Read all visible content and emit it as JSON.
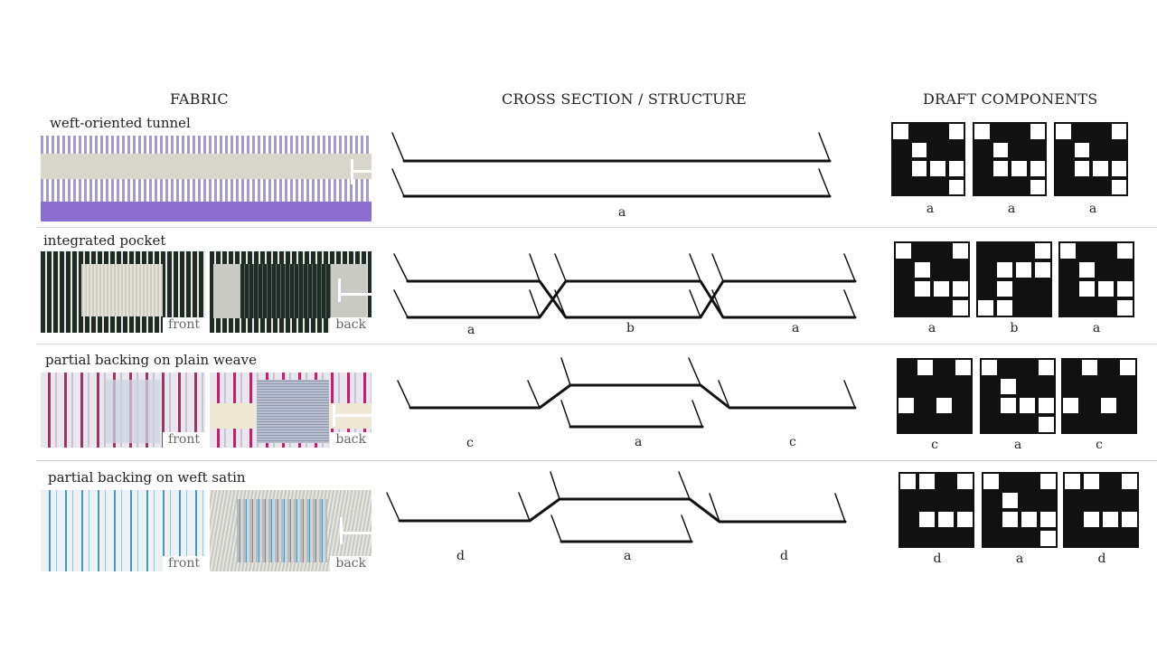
{
  "headers": {
    "fabric": "FABRIC",
    "cross_section": "CROSS SECTION / STRUCTURE",
    "draft": "DRAFT COMPONENTS"
  },
  "rows": [
    {
      "title": "weft-oriented tunnel",
      "cross_labels": [
        "a"
      ],
      "draft_labels": [
        "a",
        "a",
        "a"
      ]
    },
    {
      "title": "integrated pocket",
      "photo_front": "front",
      "photo_back": "back",
      "cross_labels": [
        "a",
        "b",
        "a"
      ],
      "draft_labels": [
        "a",
        "b",
        "a"
      ]
    },
    {
      "title": "partial backing on plain weave",
      "photo_front": "front",
      "photo_back": "back",
      "cross_labels": [
        "c",
        "a",
        "c"
      ],
      "draft_labels": [
        "c",
        "a",
        "c"
      ]
    },
    {
      "title": "partial backing on weft satin",
      "photo_front": "front",
      "photo_back": "back",
      "cross_labels": [
        "d",
        "a",
        "d"
      ],
      "draft_labels": [
        "d",
        "a",
        "d"
      ]
    }
  ],
  "colors": {
    "line": "#111111",
    "draft_fill": "#111111",
    "purple": "#8f7cc4",
    "green_dark": "#1f2b26",
    "magenta": "#b32a6a",
    "blue": "#4a98c0"
  }
}
